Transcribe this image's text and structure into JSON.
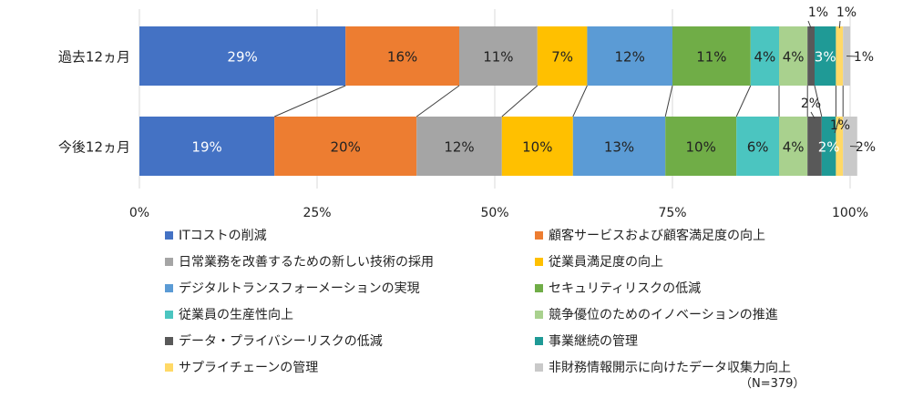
{
  "chart_data": {
    "type": "bar",
    "orientation": "horizontal",
    "stacked": "percent",
    "categories": [
      "過去12ヵ月",
      "今後12ヵ月"
    ],
    "xlim": [
      0,
      100
    ],
    "xticks": [
      "0%",
      "25%",
      "50%",
      "75%",
      "100%"
    ],
    "series": [
      {
        "name": "ITコストの削減",
        "color": "#4472C4",
        "values": [
          29,
          19
        ],
        "labels": [
          "29%",
          "19%"
        ]
      },
      {
        "name": "顧客サービスおよび顧客満足度の向上",
        "color": "#ED7D31",
        "values": [
          16,
          20
        ],
        "labels": [
          "16%",
          "20%"
        ]
      },
      {
        "name": "日常業務を改善するための新しい技術の採用",
        "color": "#A5A5A5",
        "values": [
          11,
          12
        ],
        "labels": [
          "11%",
          "12%"
        ]
      },
      {
        "name": "従業員満足度の向上",
        "color": "#FFC000",
        "values": [
          7,
          10
        ],
        "labels": [
          "7%",
          "10%"
        ]
      },
      {
        "name": "デジタルトランスフォーメーションの実現",
        "color": "#5B9BD5",
        "values": [
          12,
          13
        ],
        "labels": [
          "12%",
          "13%"
        ]
      },
      {
        "name": "セキュリティリスクの低減",
        "color": "#70AD47",
        "values": [
          11,
          10
        ],
        "labels": [
          "11%",
          "10%"
        ]
      },
      {
        "name": "従業員の生産性向上",
        "color": "#4BC5C0",
        "values": [
          4,
          6
        ],
        "labels": [
          "4%",
          "6%"
        ]
      },
      {
        "name": "競争優位のためのイノベーションの推進",
        "color": "#A9D18E",
        "values": [
          4,
          4
        ],
        "labels": [
          "4%",
          "4%"
        ]
      },
      {
        "name": "データ・プライバシーリスクの低減",
        "color": "#595959",
        "values": [
          1,
          2
        ],
        "labels": [
          "1%",
          "2%"
        ]
      },
      {
        "name": "事業継続の管理",
        "color": "#1F9A96",
        "values": [
          3,
          2
        ],
        "labels": [
          "3%",
          "2%"
        ]
      },
      {
        "name": "サプライチェーンの管理",
        "color": "#FFD966",
        "values": [
          1,
          1
        ],
        "labels": [
          "1%",
          "1%"
        ]
      },
      {
        "name": "非財務情報開示に向けたデータ収集力向上",
        "color": "#C9C9C9",
        "values": [
          1,
          2
        ],
        "labels": [
          "1%",
          "2%"
        ]
      }
    ],
    "legend_position": "bottom",
    "grid": true
  },
  "note": "（N=379）"
}
